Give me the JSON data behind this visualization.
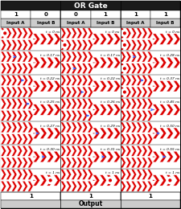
{
  "title": "OR Gate",
  "col_headers": [
    [
      "Input A",
      "Input B"
    ],
    [
      "Input A",
      "Input B"
    ],
    [
      "Input A",
      "Input B"
    ]
  ],
  "col_values": [
    [
      "1",
      "0"
    ],
    [
      "0",
      "1"
    ],
    [
      "1",
      "1"
    ]
  ],
  "output_values": [
    "1",
    "1",
    "1"
  ],
  "panel_times_0": [
    "t = 0 ns",
    "t = 0.17 ns",
    "t = 0.22 ns",
    "t = 0.25 ns",
    "t = 0.27 ns",
    "t = 0.30 ns",
    "t = 1 ns"
  ],
  "panel_times_1": [
    "t = 0 ns",
    "t = 0.17 ns",
    "t = 0.22 ns",
    "t = 0.26 ns",
    "t = 0.29 ns",
    "t = 0.31 ns",
    "t = 1 ns"
  ],
  "panel_times_2": [
    "t = 0 ns",
    "t = 0.28 ns",
    "t = 0.37 ns",
    "t = 0.45 ns",
    "t = 0.50 ns",
    "t = 0.55 ns",
    "t = 1 ns"
  ],
  "red": "#dd0000",
  "blue": "#3366ff",
  "dark_bg": "#1a1a1a",
  "cell_bg": "#cccccc",
  "white": "#ffffff",
  "black": "#000000"
}
